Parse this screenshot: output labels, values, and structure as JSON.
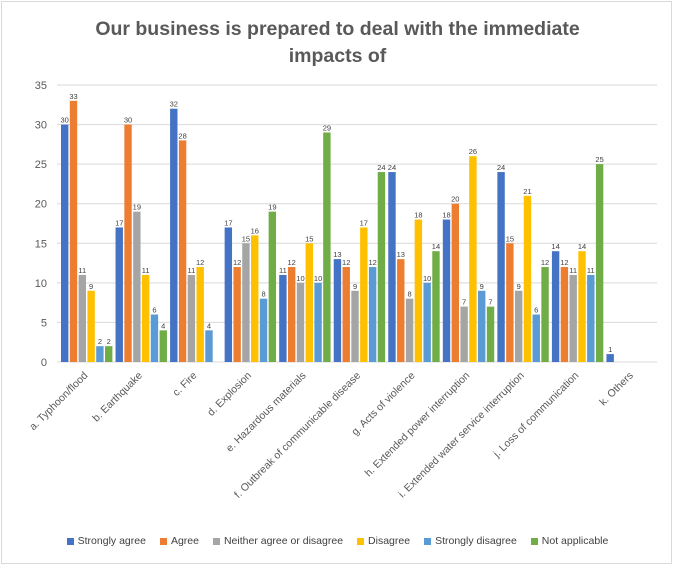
{
  "chart_data": {
    "type": "bar",
    "title_lines": [
      "Our business is prepared to deal with the immediate",
      "impacts of"
    ],
    "categories": [
      "a.    Typhoon/flood",
      "b.    Earthquake",
      "c.    Fire",
      "d.    Explosion",
      "e.    Hazardous materials",
      "f.    Outbreak of communicable disease",
      "g.    Acts of violence",
      "h.    Extended power interruption",
      "i.    Extended water service interruption",
      "j.    Loss of communication",
      "k.    Others"
    ],
    "series": [
      {
        "name": "Strongly agree",
        "color": "#4472c4",
        "values": [
          30,
          17,
          32,
          17,
          11,
          13,
          24,
          18,
          24,
          14,
          1
        ]
      },
      {
        "name": "Agree",
        "color": "#ed7d31",
        "values": [
          33,
          30,
          28,
          12,
          12,
          12,
          13,
          20,
          15,
          12,
          null
        ]
      },
      {
        "name": "Neither agree or disagree",
        "color": "#a5a5a5",
        "values": [
          11,
          19,
          11,
          15,
          10,
          9,
          8,
          7,
          9,
          11,
          null
        ]
      },
      {
        "name": "Disagree",
        "color": "#ffc000",
        "values": [
          9,
          11,
          12,
          16,
          15,
          17,
          18,
          26,
          21,
          14,
          null
        ]
      },
      {
        "name": "Strongly disagree",
        "color": "#5b9bd5",
        "values": [
          2,
          6,
          4,
          8,
          10,
          12,
          10,
          9,
          6,
          11,
          null
        ]
      },
      {
        "name": "Not applicable",
        "color": "#70ad47",
        "values": [
          2,
          4,
          null,
          19,
          29,
          24,
          14,
          7,
          12,
          25,
          null
        ]
      }
    ],
    "ylim": [
      0,
      35
    ],
    "yticks": [
      0,
      5,
      10,
      15,
      20,
      25,
      30,
      35
    ],
    "xlabel": "",
    "ylabel": "",
    "grid": true,
    "legend": "bottom"
  }
}
